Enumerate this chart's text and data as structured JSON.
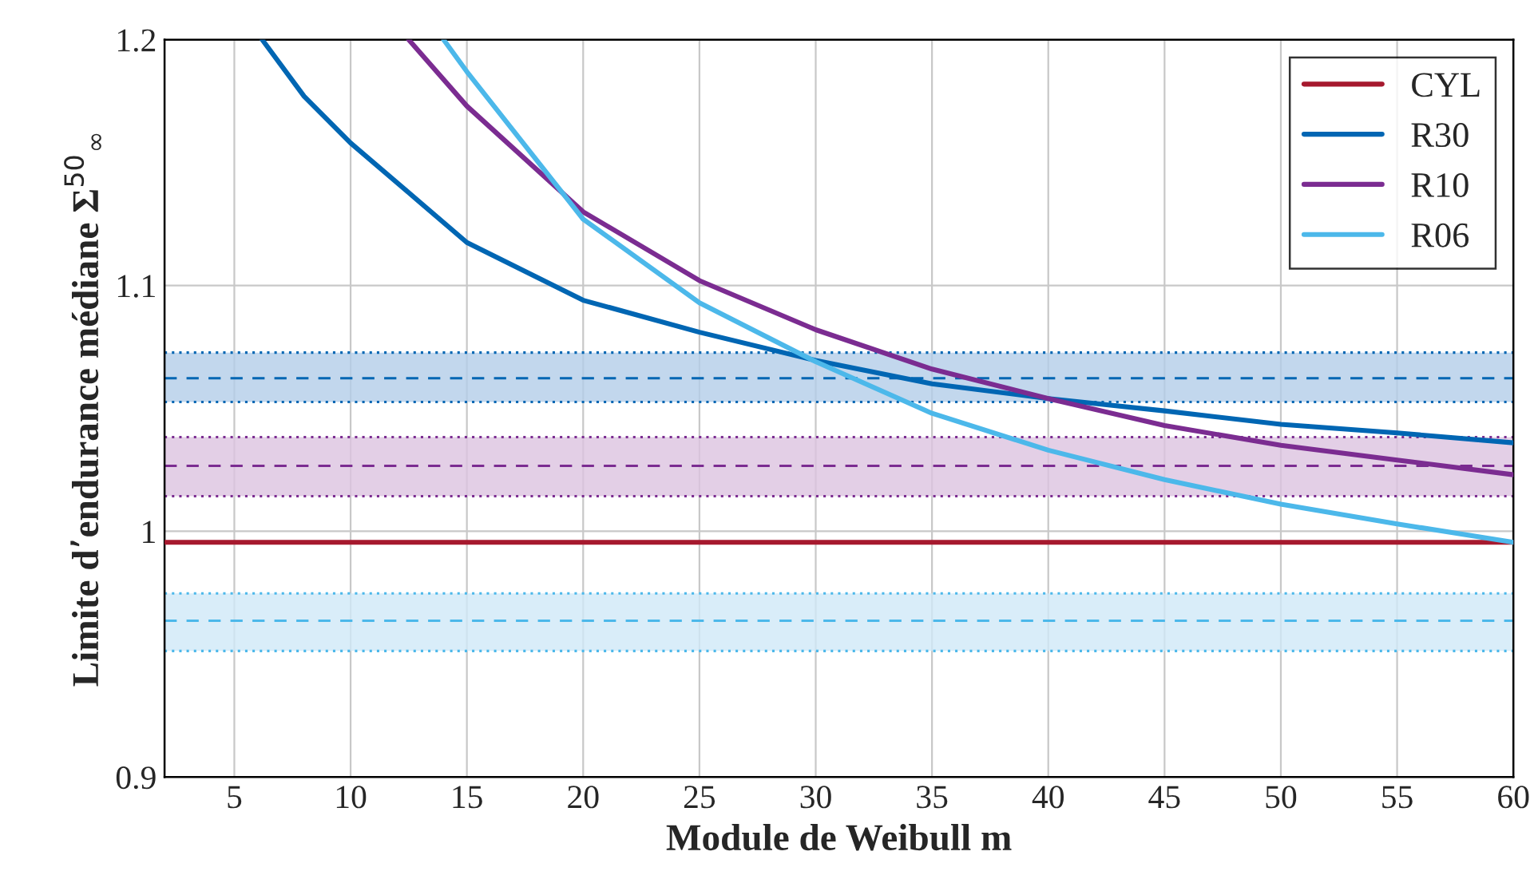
{
  "chart_data": {
    "type": "line",
    "xlabel": "Module de Weibull m",
    "ylabel": "Limite d’endurance médiane Σ$^{50}$$_{∞}$",
    "xlim": [
      2,
      60
    ],
    "ylim": [
      0.9,
      1.2
    ],
    "xticks": [
      5,
      10,
      15,
      20,
      25,
      30,
      35,
      40,
      45,
      50,
      55,
      60
    ],
    "yticks": [
      0.9,
      1,
      1.1,
      1.2
    ],
    "grid": true,
    "legend": "top right",
    "line_style": "solid",
    "marker": "none",
    "series": [
      {
        "name": "CYL",
        "color": "#a6192e",
        "x": [
          2,
          60
        ],
        "values": [
          0.9955,
          0.9955
        ]
      },
      {
        "name": "R30",
        "color": "#0066b3",
        "x": [
          6.2,
          8,
          10,
          15,
          20,
          25,
          30,
          35,
          40,
          45,
          50,
          55,
          60
        ],
        "values": [
          1.2,
          1.177,
          1.158,
          1.1175,
          1.094,
          1.081,
          1.0695,
          1.06,
          1.054,
          1.049,
          1.0435,
          1.04,
          1.036
        ]
      },
      {
        "name": "R10",
        "color": "#7b2c91",
        "x": [
          12.5,
          15,
          20,
          25,
          30,
          35,
          40,
          45,
          50,
          55,
          60
        ],
        "values": [
          1.2,
          1.173,
          1.13,
          1.102,
          1.082,
          1.066,
          1.054,
          1.043,
          1.035,
          1.029,
          1.023
        ]
      },
      {
        "name": "R06",
        "color": "#4cb8ea",
        "x": [
          14,
          15,
          20,
          25,
          30,
          35,
          40,
          45,
          50,
          55,
          60
        ],
        "values": [
          1.2,
          1.187,
          1.127,
          1.093,
          1.069,
          1.048,
          1.033,
          1.021,
          1.011,
          1.003,
          0.9955
        ]
      }
    ],
    "bands": [
      {
        "axis": "y",
        "from": 1.0526,
        "to": 1.0727,
        "color": "#b3cde8"
      },
      {
        "axis": "y",
        "from": 1.0143,
        "to": 1.0383,
        "color": "#dcc3e0"
      },
      {
        "axis": "y",
        "from": 0.9513,
        "to": 0.9747,
        "color": "#cfe9f8"
      }
    ],
    "ref_lines": [
      {
        "axis": "y",
        "value": 1.0623,
        "color": "#0066b3",
        "line_style": "dashed"
      },
      {
        "axis": "y",
        "value": 1.0727,
        "color": "#0066b3",
        "line_style": "dotted"
      },
      {
        "axis": "y",
        "value": 1.0526,
        "color": "#0066b3",
        "line_style": "dotted"
      },
      {
        "axis": "y",
        "value": 1.0266,
        "color": "#7b2c91",
        "line_style": "dashed"
      },
      {
        "axis": "y",
        "value": 1.0383,
        "color": "#7b2c91",
        "line_style": "dotted"
      },
      {
        "axis": "y",
        "value": 1.0143,
        "color": "#7b2c91",
        "line_style": "dotted"
      },
      {
        "axis": "y",
        "value": 0.9636,
        "color": "#4cb8ea",
        "line_style": "dashed"
      },
      {
        "axis": "y",
        "value": 0.9747,
        "color": "#4cb8ea",
        "line_style": "dotted"
      },
      {
        "axis": "y",
        "value": 0.9513,
        "color": "#4cb8ea",
        "line_style": "dotted"
      }
    ]
  }
}
